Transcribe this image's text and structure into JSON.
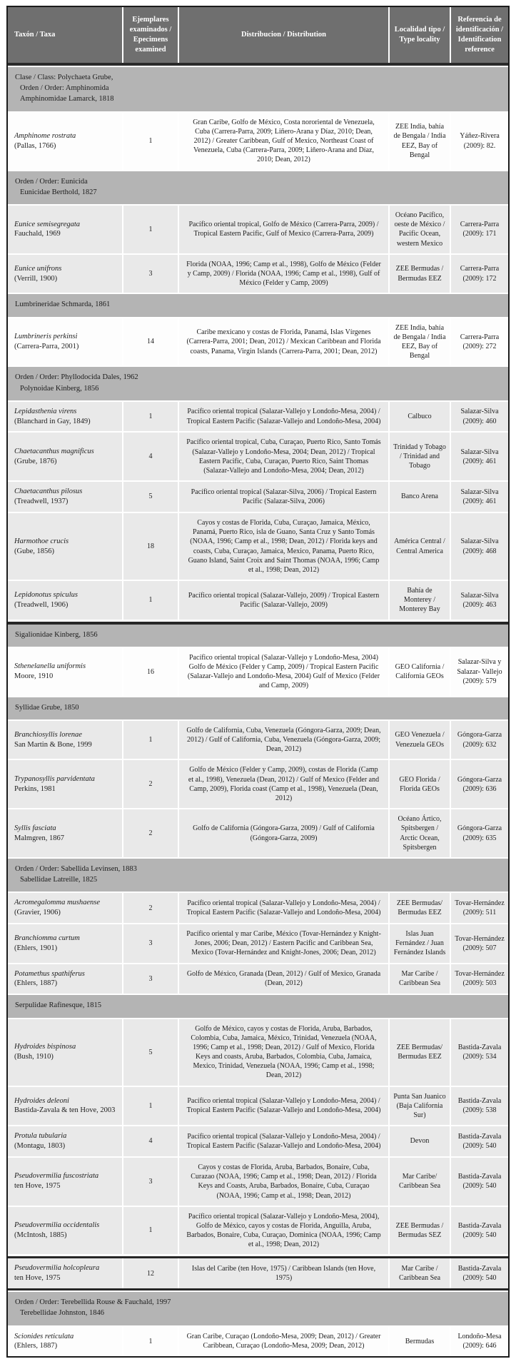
{
  "colors": {
    "header_bg": "#6f6f6f",
    "header_text": "#ffffff",
    "section_bg": "#b4b4b4",
    "row_light": "#e9e9e9",
    "row_white": "#fdfdfd",
    "border_dark": "#1b1b1b"
  },
  "table": {
    "headers": [
      "Taxón / Taxa",
      "Ejemplares examinados / Epecimens examined",
      "Distribucion / Distribution",
      "Localidad tipo / Type locality",
      "Referencia de identificación / Identification reference"
    ],
    "body": [
      {
        "type": "section",
        "lines": [
          "Clase / Class: Polychaeta Grube,",
          "Orden / Order: Amphinomida",
          "Amphinomidae Lamarck, 1818"
        ]
      },
      {
        "type": "species",
        "shade": "white",
        "name": "Amphinome rostrata",
        "authority": "(Pallas, 1766)",
        "count": "1",
        "distribution": "Gran Caribe, Golfo de México, Costa nororiental de Venezuela, Cuba (Carrera-Parra, 2009; Liñero-Arana y Díaz, 2010; Dean, 2012) / Greater Caribbean, Gulf of Mexico, Northeast Coast of Venezuela, Cuba (Carrera-Parra, 2009; Liñero-Arana and Díaz, 2010; Dean, 2012)",
        "locality": "ZEE India, bahía de Bengala / India EEZ, Bay of Bengal",
        "reference": "Yáñez-Rivera (2009): 82."
      },
      {
        "type": "section",
        "lines": [
          "Orden / Order: Eunicida",
          "Eunicidae Berthold, 1827"
        ]
      },
      {
        "type": "species",
        "shade": "light",
        "name": "Eunice semisegregata",
        "authority": "Fauchald, 1969",
        "count": "1",
        "distribution": "Pacífico oriental tropical, Golfo de México (Carrera-Parra, 2009) / Tropical Eastern Pacific, Gulf of Mexico (Carrera-Parra, 2009)",
        "locality": "Océano Pacífico, oeste de México / Pacific Ocean, western Mexico",
        "reference": "Carrera-Parra (2009): 171"
      },
      {
        "type": "species",
        "shade": "light",
        "name": "Eunice unifrons",
        "authority": "(Verrill, 1900)",
        "count": "3",
        "distribution": "Florida (NOAA, 1996; Camp et al., 1998), Golfo de México (Felder y Camp, 2009) / Florida (NOAA, 1996; Camp et al., 1998), Gulf of México (Felder y Camp, 2009)",
        "locality": "ZEE Bermudas / Bermudas EEZ",
        "reference": "Carrera-Parra (2009): 172"
      },
      {
        "type": "section",
        "lines": [
          "Lumbrineridae Schmarda, 1861"
        ]
      },
      {
        "type": "species",
        "shade": "white",
        "name": "Lumbrineris perkinsi",
        "authority": "(Carrera-Parra, 2001)",
        "count": "14",
        "distribution": "Caribe mexicano y costas de Florida, Panamá, Islas Vírgenes (Carrera-Parra, 2001; Dean, 2012) / Mexican Caribbean and Florida coasts, Panama, Virgin Islands (Carrera-Parra, 2001; Dean, 2012)",
        "locality": "ZEE India, bahía de Bengala / India EEZ, Bay of Bengal",
        "reference": "Carrera-Parra (2009): 272"
      },
      {
        "type": "section",
        "lines": [
          "Orden / Order: Phyllodocida Dales, 1962",
          "Polynoidae Kinberg, 1856"
        ]
      },
      {
        "type": "species",
        "shade": "light",
        "name": "Lepidasthenia virens",
        "authority": "(Blanchard in Gay, 1849)",
        "count": "1",
        "distribution": "Pacífico oriental tropical (Salazar-Vallejo y Londoño-Mesa, 2004) / Tropical Eastern Pacific (Salazar-Vallejo and Londoño-Mesa, 2004)",
        "locality": "Calbuco",
        "reference": "Salazar-Silva (2009): 460"
      },
      {
        "type": "species",
        "shade": "light",
        "name": "Chaetacanthus magnificus",
        "authority": "(Grube, 1876)",
        "count": "4",
        "distribution": "Pacífico oriental tropical, Cuba, Curaçao, Puerto Rico, Santo Tomás (Salazar-Vallejo y Londoño-Mesa, 2004; Dean, 2012) / Tropical Eastern Pacific, Cuba, Curaçao, Puerto Rico, Saint Thomas (Salazar-Vallejo and Londoño-Mesa, 2004; Dean, 2012)",
        "locality": "Trinidad y Tobago / Trinidad and Tobago",
        "reference": "Salazar-Silva (2009): 461"
      },
      {
        "type": "species",
        "shade": "light",
        "name": "Chaetacanthus pilosus",
        "authority": "(Treadwell, 1937)",
        "count": "5",
        "distribution": "Pacífico oriental tropical (Salazar-Silva, 2006) / Tropical Eastern Pacific (Salazar-Silva, 2006)",
        "locality": "Banco Arena",
        "reference": "Salazar-Silva (2009): 461"
      },
      {
        "type": "species",
        "shade": "light",
        "name": "Harmothoe crucis",
        "authority": "(Gube, 1856)",
        "count": "18",
        "distribution": "Cayos y costas de Florida, Cuba, Curaçao, Jamaica, México, Panamá, Puerto Rico, isla de Guano, Santa Cruz y Santo Tomás (NOAA, 1996; Camp et al., 1998; Dean, 2012) / Florida keys and coasts, Cuba, Curaçao, Jamaica, Mexico, Panama, Puerto Rico, Guano Island, Saint Croix and Saint Thomas (NOAA, 1996; Camp et al., 1998; Dean, 2012)",
        "locality": "América Central / Central America",
        "reference": "Salazar-Silva (2009): 468"
      },
      {
        "type": "species",
        "shade": "light",
        "name": "Lepidonotus spiculus",
        "authority": "(Treadwell, 1906)",
        "count": "1",
        "distribution": "Pacífico oriental tropical (Salazar-Vallejo, 2009) / Tropical Eastern Pacific (Salazar-Vallejo, 2009)",
        "locality": "Bahía de Monterey / Monterey Bay",
        "reference": "Salazar-Silva (2009): 463"
      },
      {
        "type": "section",
        "break_top": true,
        "lines": [
          "Sigalionidae Kinberg, 1856"
        ]
      },
      {
        "type": "species",
        "shade": "white",
        "name": "Sthenelanella uniformis",
        "authority": "Moore, 1910",
        "count": "16",
        "distribution": "Pacífico oriental tropical (Salazar-Vallejo y Londoño-Mesa, 2004) Golfo de México (Felder y Camp, 2009) / Tropical Eastern Pacific (Salazar-Vallejo and Londoño-Mesa, 2004) Gulf of Mexico (Felder and Camp, 2009)",
        "locality": "GEO California / California GEOs",
        "reference": "Salazar-Silva y Salazar- Vallejo (2009): 579"
      },
      {
        "type": "section",
        "lines": [
          "Syllidae Grube, 1850"
        ]
      },
      {
        "type": "species",
        "shade": "light",
        "name": "Branchiosyllis lorenae",
        "authority": "San Martin & Bone, 1999",
        "count": "1",
        "distribution": "Golfo de California, Cuba, Venezuela (Góngora-Garza, 2009; Dean, 2012) / Gulf of California, Cuba, Venezuela (Góngora-Garza, 2009; Dean, 2012)",
        "locality": "GEO Venezuela / Venezuela GEOs",
        "reference": "Góngora-Garza (2009): 632"
      },
      {
        "type": "species",
        "shade": "light",
        "name": "Trypanosyllis parvidentata",
        "authority": "Perkins, 1981",
        "count": "2",
        "distribution": "Golfo de México (Felder y Camp, 2009), costas de Florida (Camp et al., 1998), Venezuela (Dean, 2012) / Gulf of Mexico (Felder and Camp, 2009), Florida coast (Camp et al., 1998), Venezuela (Dean, 2012)",
        "locality": "GEO Florida / Florida GEOs",
        "reference": "Góngora-Garza (2009): 636"
      },
      {
        "type": "species",
        "shade": "light",
        "name": "Syllis fasciata",
        "authority": "Malmgren, 1867",
        "count": "2",
        "distribution": "Golfo de California (Góngora-Garza, 2009) / Gulf of California (Góngora-Garza, 2009)",
        "locality": "Océano Ártico, Spitsbergen / Arctic Ocean, Spitsbergen",
        "reference": "Góngora-Garza (2009): 635"
      },
      {
        "type": "section",
        "lines": [
          "Orden / Order: Sabellida Levinsen, 1883",
          "Sabellidae Latreille, 1825"
        ]
      },
      {
        "type": "species",
        "shade": "light",
        "name": "Acromegalomma mushaense",
        "authority": "(Gravier, 1906)",
        "count": "2",
        "distribution": "Pacífico oriental tropical (Salazar-Vallejo y Londoño-Mesa, 2004) / Tropical Eastern Pacific (Salazar-Vallejo and Londoño-Mesa, 2004)",
        "locality": "ZEE Bermudas/ Bermudas EEZ",
        "reference": "Tovar-Hernández (2009): 511"
      },
      {
        "type": "species",
        "shade": "light",
        "name": "Branchiomma curtum",
        "authority": "(Ehlers, 1901)",
        "count": "3",
        "distribution": "Pacífico oriental y mar Caribe, México (Tovar-Hernández y Knight-Jones, 2006; Dean, 2012) / Eastern Pacific and Caribbean Sea, Mexico (Tovar-Hernández and Knight-Jones, 2006; Dean, 2012)",
        "locality": "Islas Juan Fernández / Juan Fernández Islands",
        "reference": "Tovar-Hernández (2009): 507"
      },
      {
        "type": "species",
        "shade": "light",
        "name": "Potamethus spathiferus",
        "authority": "(Ehlers, 1887)",
        "count": "3",
        "distribution": "Golfo de México, Granada (Dean, 2012) / Gulf of Mexico, Granada (Dean, 2012)",
        "locality": "Mar Caribe / Caribbean Sea",
        "reference": "Tovar-Hernández (2009): 503"
      },
      {
        "type": "section",
        "lines": [
          "Serpulidae Rafinesque, 1815"
        ]
      },
      {
        "type": "species",
        "shade": "light",
        "name": "Hydroides bispinosa",
        "authority": "(Bush, 1910)",
        "count": "5",
        "distribution": "Golfo de México, cayos y costas de Florida, Aruba, Barbados, Colombia, Cuba, Jamaica, México, Trinidad, Venezuela (NOAA, 1996; Camp et al., 1998; Dean, 2012) / Gulf of Mexico, Florida Keys and coasts, Aruba, Barbados, Colombia, Cuba, Jamaica, Mexico, Trinidad, Venezuela (NOAA, 1996; Camp et al., 1998; Dean, 2012)",
        "locality": "ZEE Bermudas/ Bermudas EEZ",
        "reference": "Bastida-Zavala (2009): 534"
      },
      {
        "type": "species",
        "shade": "light",
        "name": "Hydroides deleoni",
        "authority": "Bastida-Zavala & ten Hove, 2003",
        "count": "1",
        "distribution": "Pacífico oriental tropical (Salazar-Vallejo y Londoño-Mesa, 2004) / Tropical Eastern Pacific (Salazar-Vallejo and Londoño-Mesa, 2004)",
        "locality": "Punta San Juanico (Baja California Sur)",
        "reference": "Bastida-Zavala (2009): 538"
      },
      {
        "type": "species",
        "shade": "light",
        "name": "Protula tubularia",
        "authority": "(Montagu, 1803)",
        "count": "4",
        "distribution": "Pacífico oriental tropical (Salazar-Vallejo y Londoño-Mesa, 2004) / Tropical Eastern Pacific (Salazar-Vallejo and Londoño-Mesa, 2004)",
        "locality": "Devon",
        "reference": "Bastida-Zavala (2009): 540"
      },
      {
        "type": "species",
        "shade": "light",
        "name": "Pseudovermilia fuscostriata",
        "authority": "ten Hove, 1975",
        "count": "3",
        "distribution": "Cayos y costas de Florida, Aruba, Barbados, Bonaire, Cuba, Curazao (NOAA, 1996; Camp et al., 1998; Dean, 2012) / Florida Keys and Coasts, Aruba, Barbados, Bonaire, Cuba, Curaçao (NOAA, 1996; Camp et al., 1998; Dean, 2012)",
        "locality": "Mar Caribe/ Caribbean Sea",
        "reference": "Bastida-Zavala (2009): 540"
      },
      {
        "type": "species",
        "shade": "light",
        "name": "Pseudovermilia occidentalis",
        "authority": "(McIntosh, 1885)",
        "count": "1",
        "distribution": "Pacífico oriental tropical (Salazar-Vallejo y Londoño-Mesa, 2004), Golfo de México, cayos y costas de Florida, Anguilla, Aruba, Barbados, Bonaire, Cuba, Curaçao, Dominica (NOAA, 1996; Camp et al., 1998; Dean, 2012)",
        "locality": "ZEE Bermudas / Bermudas SEZ",
        "reference": "Bastida-Zavala (2009): 540"
      },
      {
        "type": "species",
        "shade": "light",
        "emphasis": true,
        "name": "Pseudovermilia holcopleura",
        "authority": "ten Hove, 1975",
        "count": "12",
        "distribution": "Islas del Caribe (ten Hove, 1975) / Caribbean Islands (ten Hove, 1975)",
        "locality": "Mar Caribe / Caribbean Sea",
        "reference": "Bastida-Zavala (2009): 540"
      },
      {
        "type": "section",
        "lines": [
          "Orden / Order: Terebellida Rouse & Fauchald, 1997",
          "Terebellidae Johnston, 1846"
        ]
      },
      {
        "type": "species",
        "shade": "white",
        "name": "Scionides reticulata",
        "authority": "(Ehlers, 1887)",
        "count": "1",
        "distribution": "Gran Caribe, Curaçao (Londoño-Mesa, 2009; Dean, 2012) / Greater Caribbean, Curaçao (Londoño-Mesa, 2009; Dean, 2012)",
        "locality": "Bermudas",
        "reference": "Londoño-Mesa (2009): 646"
      }
    ]
  }
}
